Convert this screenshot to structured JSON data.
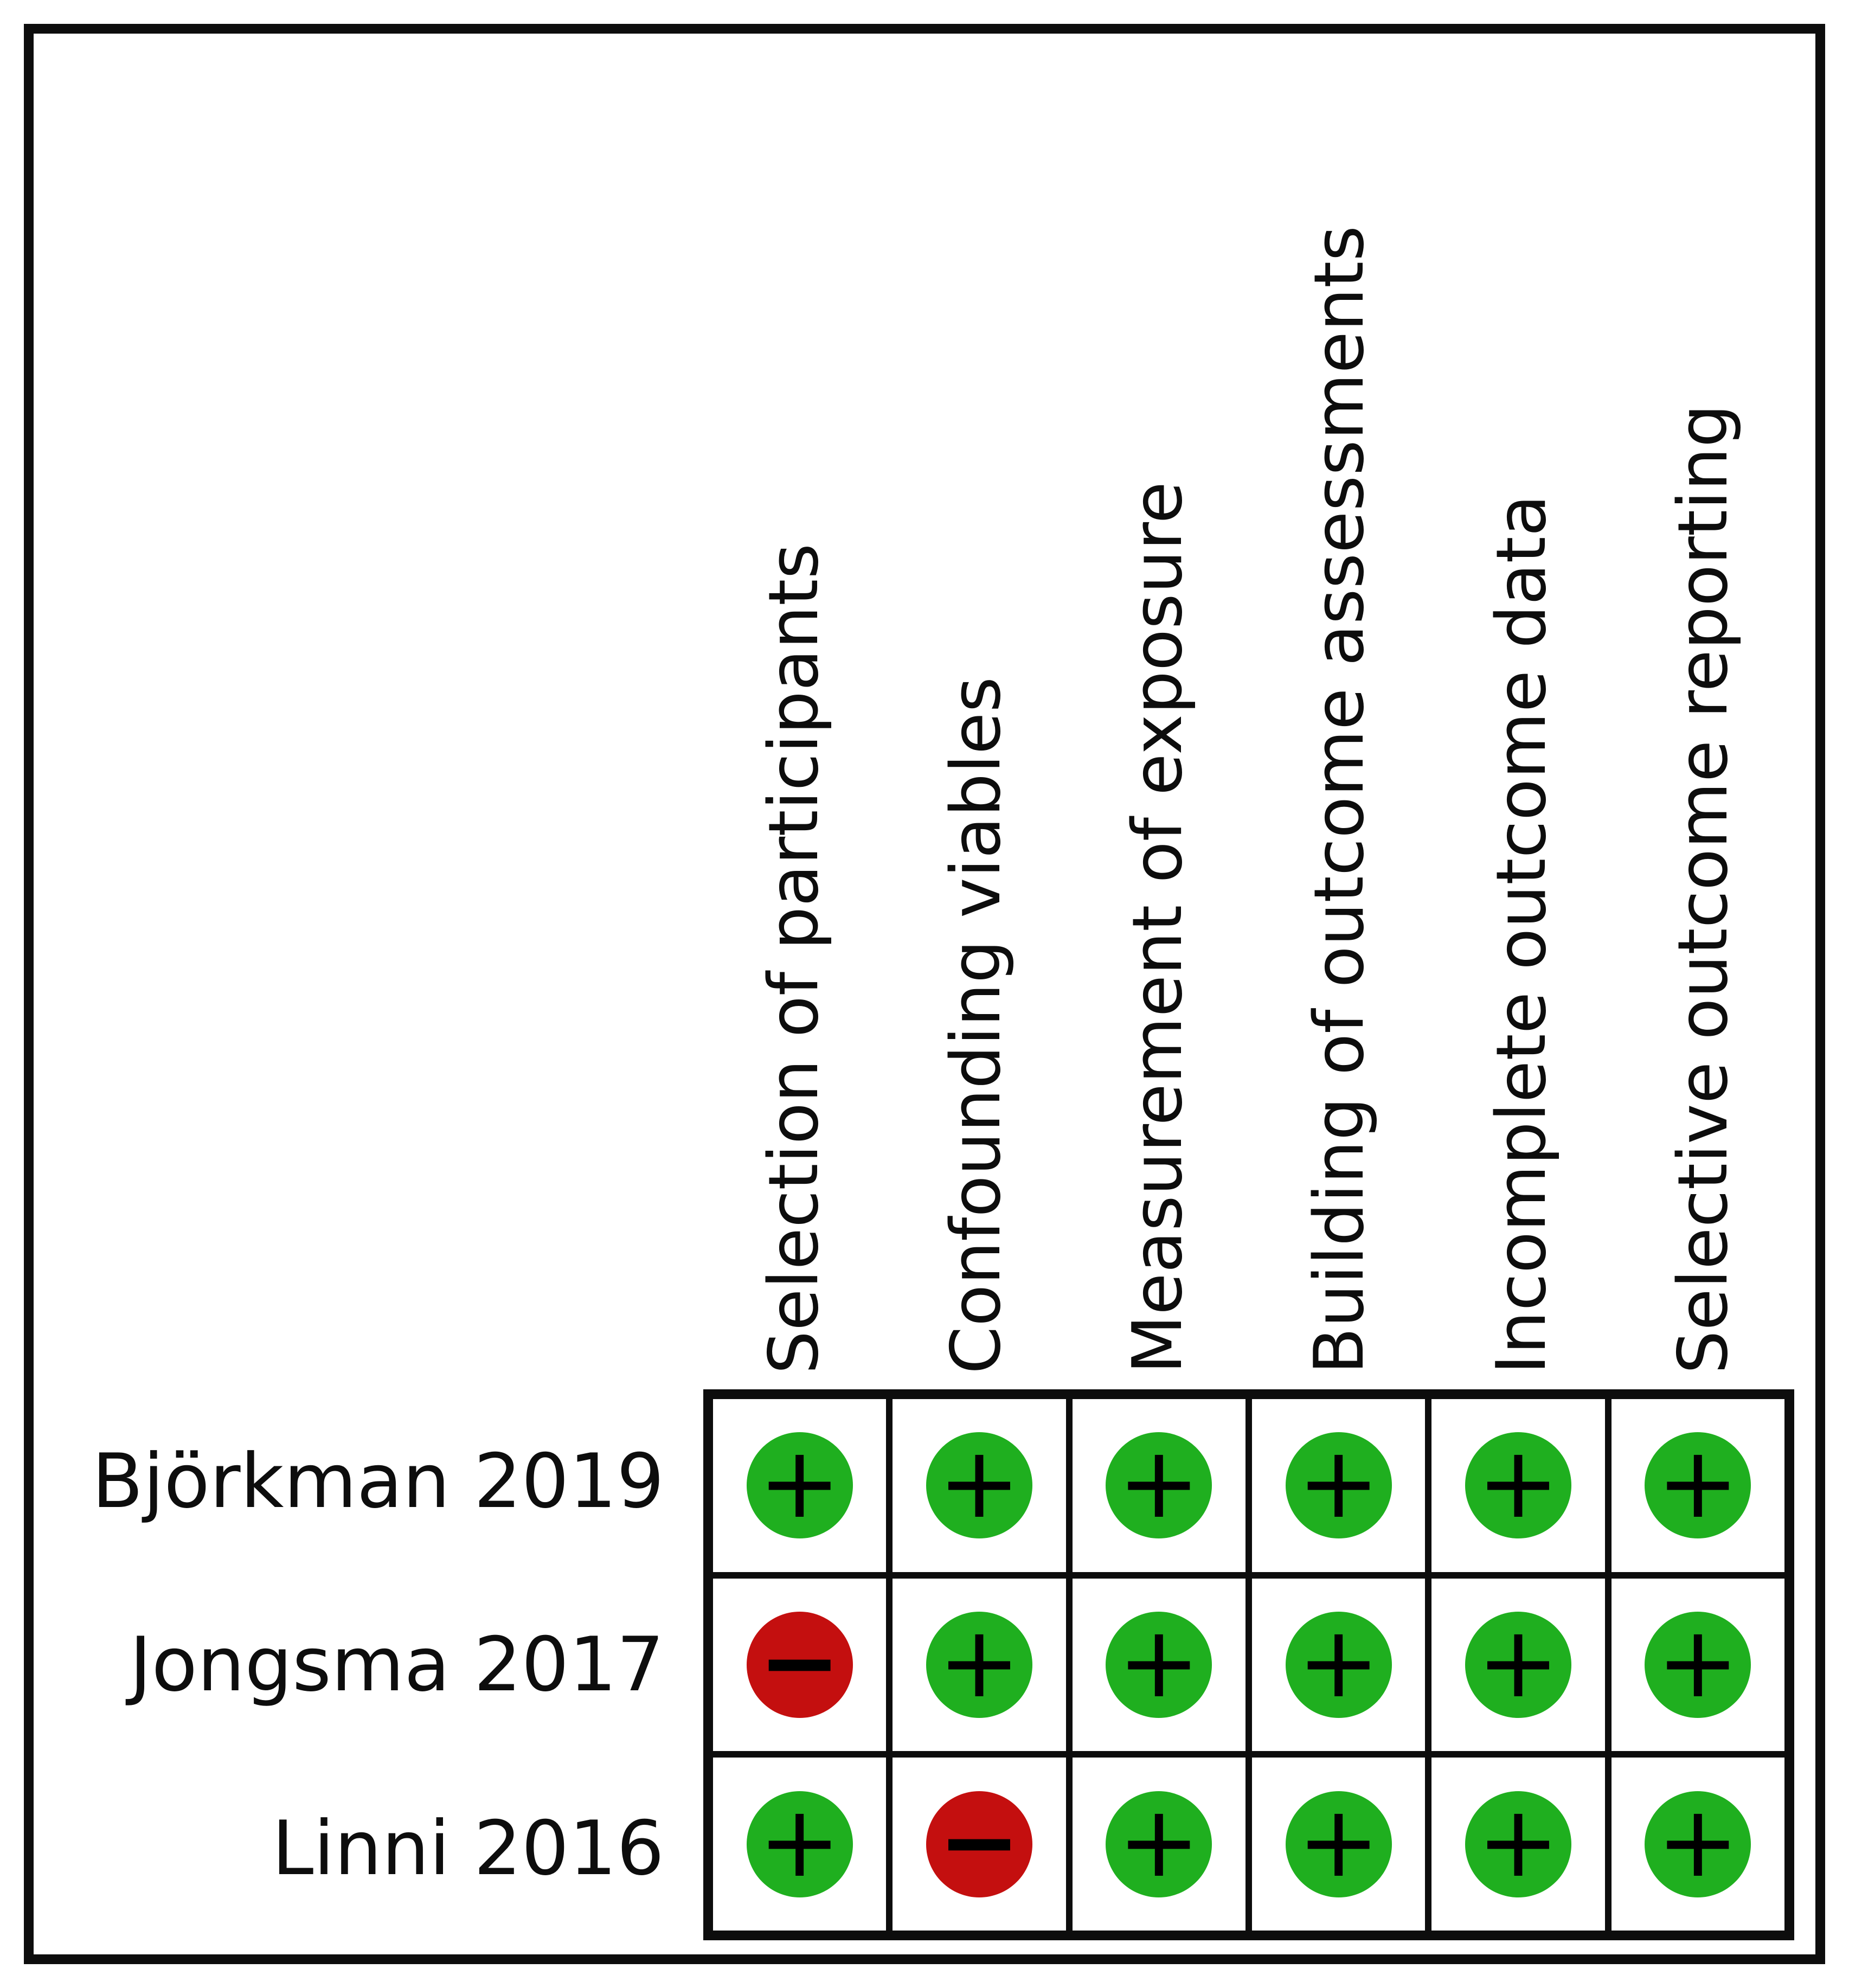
{
  "chart_data": {
    "type": "table",
    "description_visible": "risk of bias judgement grid",
    "columns": [
      "Selection of participants",
      "Confounding viables",
      "Measurement of exposure",
      "Building of outcome assessments",
      "Incomplete outcome data",
      "Selective outcome reporting"
    ],
    "rows": [
      {
        "label": "Björkman 2019",
        "judgements": [
          "+",
          "+",
          "+",
          "+",
          "+",
          "+"
        ]
      },
      {
        "label": "Jongsma 2017",
        "judgements": [
          "−",
          "+",
          "+",
          "+",
          "+",
          "+"
        ]
      },
      {
        "label": "Linni 2016",
        "judgements": [
          "+",
          "−",
          "+",
          "+",
          "+",
          "+"
        ]
      }
    ],
    "symbols": {
      "positive": "+",
      "negative": "−"
    },
    "colors": {
      "positive_green": "#1FAF1F",
      "negative_red": "#C40F0F",
      "line_black": "#0d0d0d",
      "background": "#ffffff"
    },
    "layout_hints": {
      "header_rotation_deg": 90,
      "grid_columns": 6,
      "grid_rows": 3
    }
  }
}
